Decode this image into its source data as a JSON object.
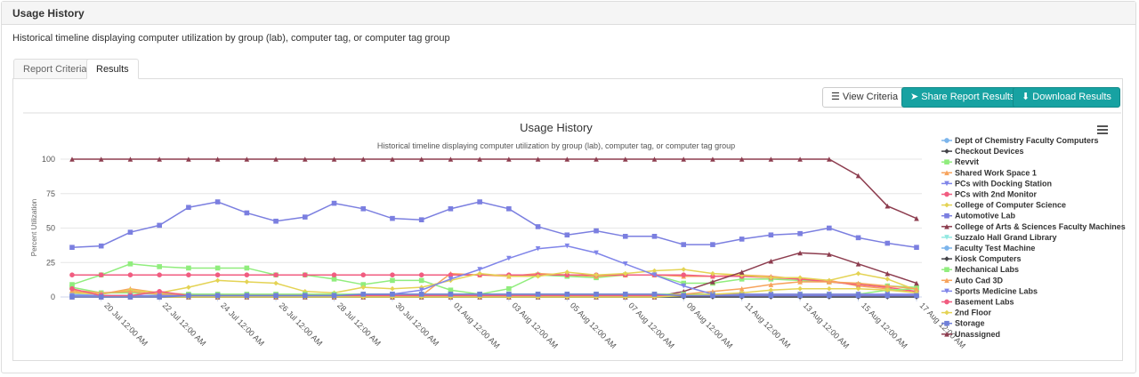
{
  "page": {
    "header": "Usage History",
    "description": "Historical timeline displaying computer utilization by group (lab), computer tag, or computer tag group",
    "tabs": [
      "Report Criteria",
      "Results"
    ],
    "buttons": [
      "View Criteria",
      "Share Report Results",
      "Download Results"
    ]
  },
  "chart_data": {
    "type": "line",
    "title": "Usage History",
    "subtitle": "Historical timeline displaying computer utilization by group (lab), computer tag, or computer tag group",
    "y_label": "Percent Utilization",
    "categories": [
      null,
      "20 Jul 12:00 AM",
      null,
      "22 Jul 12:00 AM",
      null,
      "24 Jul 12:00 AM",
      null,
      "26 Jul 12:00 AM",
      null,
      "28 Jul 12:00 AM",
      null,
      "30 Jul 12:00 AM",
      null,
      "01 Aug 12:00 AM",
      null,
      "03 Aug 12:00 AM",
      null,
      "05 Aug 12:00 AM",
      null,
      "07 Aug 12:00 AM",
      null,
      "09 Aug 12:00 AM",
      null,
      "11 Aug 12:00 AM",
      null,
      "13 Aug 12:00 AM",
      null,
      "15 Aug 12:00 AM",
      null,
      "17 Aug 12:00 AM"
    ],
    "ylim": [
      0,
      100
    ],
    "yticks": [
      0,
      25,
      50,
      75,
      100
    ],
    "grid": true,
    "series": [
      {
        "name": "Dept of Chemistry Faculty Computers",
        "color": "#7cb5ec",
        "symbol": "circle",
        "values": [
          2,
          1,
          1,
          1,
          2,
          2,
          1,
          1,
          1,
          1,
          2,
          2,
          1,
          1,
          1,
          2,
          2,
          2,
          2,
          1,
          1,
          1,
          1,
          1,
          1,
          1,
          1,
          1,
          2,
          1
        ]
      },
      {
        "name": "Checkout Devices",
        "color": "#434348",
        "symbol": "diamond",
        "values": [
          0,
          0,
          0,
          0,
          0,
          0,
          0,
          0,
          0,
          0,
          0,
          0,
          0,
          0,
          0,
          0,
          0,
          0,
          0,
          0,
          0,
          0,
          0,
          0,
          0,
          0,
          0,
          0,
          0,
          0
        ]
      },
      {
        "name": "Revvit",
        "color": "#90ed7d",
        "symbol": "square",
        "values": [
          9,
          16,
          24,
          22,
          21,
          21,
          21,
          16,
          16,
          13,
          9,
          12,
          12,
          5,
          2,
          6,
          16,
          15,
          14,
          16,
          16,
          10,
          10,
          13,
          13,
          12,
          11,
          9,
          8,
          7
        ]
      },
      {
        "name": "Shared Work Space 1",
        "color": "#f7a35c",
        "symbol": "triangle",
        "values": [
          4,
          2,
          6,
          3,
          2,
          1,
          1,
          1,
          1,
          1,
          1,
          1,
          1,
          17,
          16,
          15,
          17,
          16,
          15,
          16,
          16,
          15,
          15,
          16,
          15,
          13,
          12,
          8,
          6,
          3
        ]
      },
      {
        "name": "PCs with Docking Station",
        "color": "#8085e9",
        "symbol": "triangle-down",
        "values": [
          0,
          0,
          0,
          0,
          1,
          1,
          1,
          1,
          1,
          1,
          1,
          1,
          1,
          1,
          1,
          1,
          1,
          1,
          1,
          1,
          1,
          1,
          1,
          1,
          1,
          1,
          1,
          1,
          1,
          1
        ]
      },
      {
        "name": "PCs with 2nd Monitor",
        "color": "#f15c80",
        "symbol": "circle",
        "values": [
          16,
          16,
          16,
          16,
          16,
          16,
          16,
          16,
          16,
          16,
          16,
          16,
          16,
          16,
          16,
          16,
          16,
          16,
          16,
          16,
          16,
          16,
          15,
          15,
          14,
          13,
          11,
          9,
          7,
          4
        ]
      },
      {
        "name": "College of Computer Science",
        "color": "#e4d354",
        "symbol": "diamond",
        "values": [
          3,
          2,
          5,
          3,
          7,
          12,
          11,
          10,
          4,
          3,
          7,
          6,
          7,
          12,
          17,
          15,
          15,
          18,
          16,
          17,
          19,
          20,
          17,
          16,
          14,
          14,
          12,
          17,
          13,
          5
        ]
      },
      {
        "name": "Automotive Lab",
        "color": "#7b7fe0",
        "symbol": "square",
        "values": [
          36,
          37,
          47,
          52,
          65,
          69,
          61,
          55,
          58,
          68,
          64,
          57,
          56,
          64,
          69,
          64,
          51,
          45,
          48,
          44,
          44,
          38,
          38,
          42,
          45,
          46,
          50,
          43,
          39,
          36
        ]
      },
      {
        "name": "College of Arts & Sciences Faculty Machines",
        "color": "#8d3d4f",
        "symbol": "triangle",
        "values": [
          0,
          0,
          0,
          0,
          0,
          0,
          0,
          0,
          0,
          0,
          0,
          0,
          0,
          0,
          0,
          0,
          0,
          0,
          0,
          0,
          0,
          4,
          11,
          18,
          26,
          32,
          31,
          24,
          17,
          10
        ]
      },
      {
        "name": "Suzzalo Hall Grand Library",
        "color": "#91e8e1",
        "symbol": "triangle-down",
        "values": [
          0,
          0,
          0,
          0,
          0,
          0,
          0,
          0,
          0,
          0,
          0,
          0,
          0,
          0,
          0,
          0,
          0,
          0,
          0,
          0,
          0,
          0,
          0,
          0,
          0,
          0,
          0,
          0,
          0,
          0
        ]
      },
      {
        "name": "Faculty Test Machine",
        "color": "#7cb5ec",
        "symbol": "circle",
        "values": [
          1,
          1,
          1,
          1,
          1,
          1,
          1,
          1,
          1,
          1,
          1,
          1,
          1,
          1,
          1,
          1,
          1,
          1,
          1,
          1,
          1,
          1,
          1,
          1,
          1,
          1,
          1,
          1,
          1,
          1
        ]
      },
      {
        "name": "Kiosk Computers",
        "color": "#434348",
        "symbol": "diamond",
        "values": [
          0,
          0,
          0,
          0,
          0,
          0,
          0,
          0,
          0,
          0,
          0,
          0,
          0,
          0,
          0,
          0,
          0,
          0,
          0,
          0,
          0,
          0,
          0,
          0,
          0,
          0,
          0,
          0,
          0,
          0
        ]
      },
      {
        "name": "Mechanical Labs",
        "color": "#90ed7d",
        "symbol": "square",
        "values": [
          7,
          3,
          3,
          2,
          2,
          2,
          2,
          2,
          2,
          2,
          2,
          2,
          2,
          2,
          2,
          2,
          2,
          2,
          2,
          2,
          2,
          2,
          2,
          2,
          2,
          2,
          2,
          2,
          5,
          6
        ]
      },
      {
        "name": "Auto Cad 3D",
        "color": "#f7a35c",
        "symbol": "triangle",
        "values": [
          5,
          3,
          4,
          2,
          1,
          1,
          1,
          1,
          1,
          1,
          1,
          1,
          1,
          1,
          1,
          1,
          1,
          1,
          1,
          1,
          1,
          2,
          4,
          6,
          9,
          11,
          11,
          10,
          8,
          6
        ]
      },
      {
        "name": "Sports Medicine Labs",
        "color": "#8085e9",
        "symbol": "triangle-down",
        "values": [
          1,
          1,
          1,
          1,
          1,
          1,
          1,
          1,
          1,
          1,
          1,
          2,
          5,
          13,
          20,
          28,
          35,
          37,
          32,
          24,
          16,
          8,
          2,
          2,
          2,
          2,
          2,
          2,
          2,
          2
        ]
      },
      {
        "name": "Basement Labs",
        "color": "#f15c80",
        "symbol": "circle",
        "values": [
          6,
          1,
          1,
          4,
          1,
          1,
          1,
          1,
          1,
          1,
          1,
          1,
          1,
          1,
          1,
          1,
          1,
          1,
          1,
          1,
          1,
          1,
          1,
          1,
          1,
          1,
          1,
          1,
          1,
          1
        ]
      },
      {
        "name": "2nd Floor",
        "color": "#e4d354",
        "symbol": "diamond",
        "values": [
          0,
          0,
          0,
          0,
          0,
          0,
          0,
          0,
          0,
          0,
          0,
          0,
          0,
          0,
          0,
          0,
          0,
          0,
          0,
          0,
          0,
          1,
          2,
          3,
          5,
          6,
          6,
          6,
          5,
          3
        ]
      },
      {
        "name": "Storage",
        "color": "#6f7fd9",
        "symbol": "square",
        "values": [
          0,
          0,
          0,
          0,
          1,
          1,
          1,
          1,
          1,
          1,
          2,
          2,
          2,
          2,
          2,
          2,
          2,
          2,
          2,
          2,
          2,
          1,
          1,
          1,
          1,
          1,
          1,
          1,
          1,
          1
        ]
      },
      {
        "name": "Unassigned",
        "color": "#8d3d4f",
        "symbol": "triangle",
        "values": [
          100,
          100,
          100,
          100,
          100,
          100,
          100,
          100,
          100,
          100,
          100,
          100,
          100,
          100,
          100,
          100,
          100,
          100,
          100,
          100,
          100,
          100,
          100,
          100,
          100,
          100,
          100,
          88,
          66,
          57
        ]
      }
    ]
  }
}
